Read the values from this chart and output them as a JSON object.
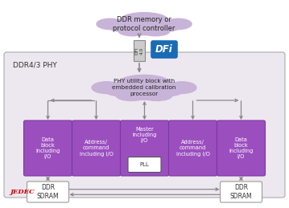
{
  "bg_color": "#ffffff",
  "outer_box_facecolor": "#ede8f0",
  "outer_box_edge": "#aaaaaa",
  "cloud_color": "#c8b4d8",
  "block_face": "#9b4fbf",
  "block_edge": "#7a3a9a",
  "block_text": "#ffffff",
  "arrow_color": "#888888",
  "dfi_connector_face": "#cccccc",
  "dfi_connector_edge": "#888888",
  "dfi_logo_face": "#1a6bb5",
  "dfi_logo_edge": "#1a6bb5",
  "dfi_logo_text": "#ffffff",
  "sdram_face": "#ffffff",
  "sdram_edge": "#999999",
  "pll_face": "#ffffff",
  "pll_edge": "#555555",
  "title_top": "DDR memory or\nprotocol controller",
  "dfi_rotated": "DFI 4.0",
  "dfi_logo_str": "DFi",
  "phy_label": "DDR4/3 PHY",
  "cloud2_label": "PHY utility block with\nembedded calibration\nprocessor",
  "blocks": [
    "Data\nblock\nincluding\nI/O",
    "Address/\ncommand\nincluding I/O",
    "Master\nincluding\nI/O",
    "Address/\ncommand\nincluding I/O",
    "Data\nblock\nincluding\nI/O"
  ],
  "pll_label": "PLL",
  "sdram_left": "DDR\nSDRAM",
  "sdram_right": "DDR\nSDRAM",
  "jedec_text": "JEDEC"
}
